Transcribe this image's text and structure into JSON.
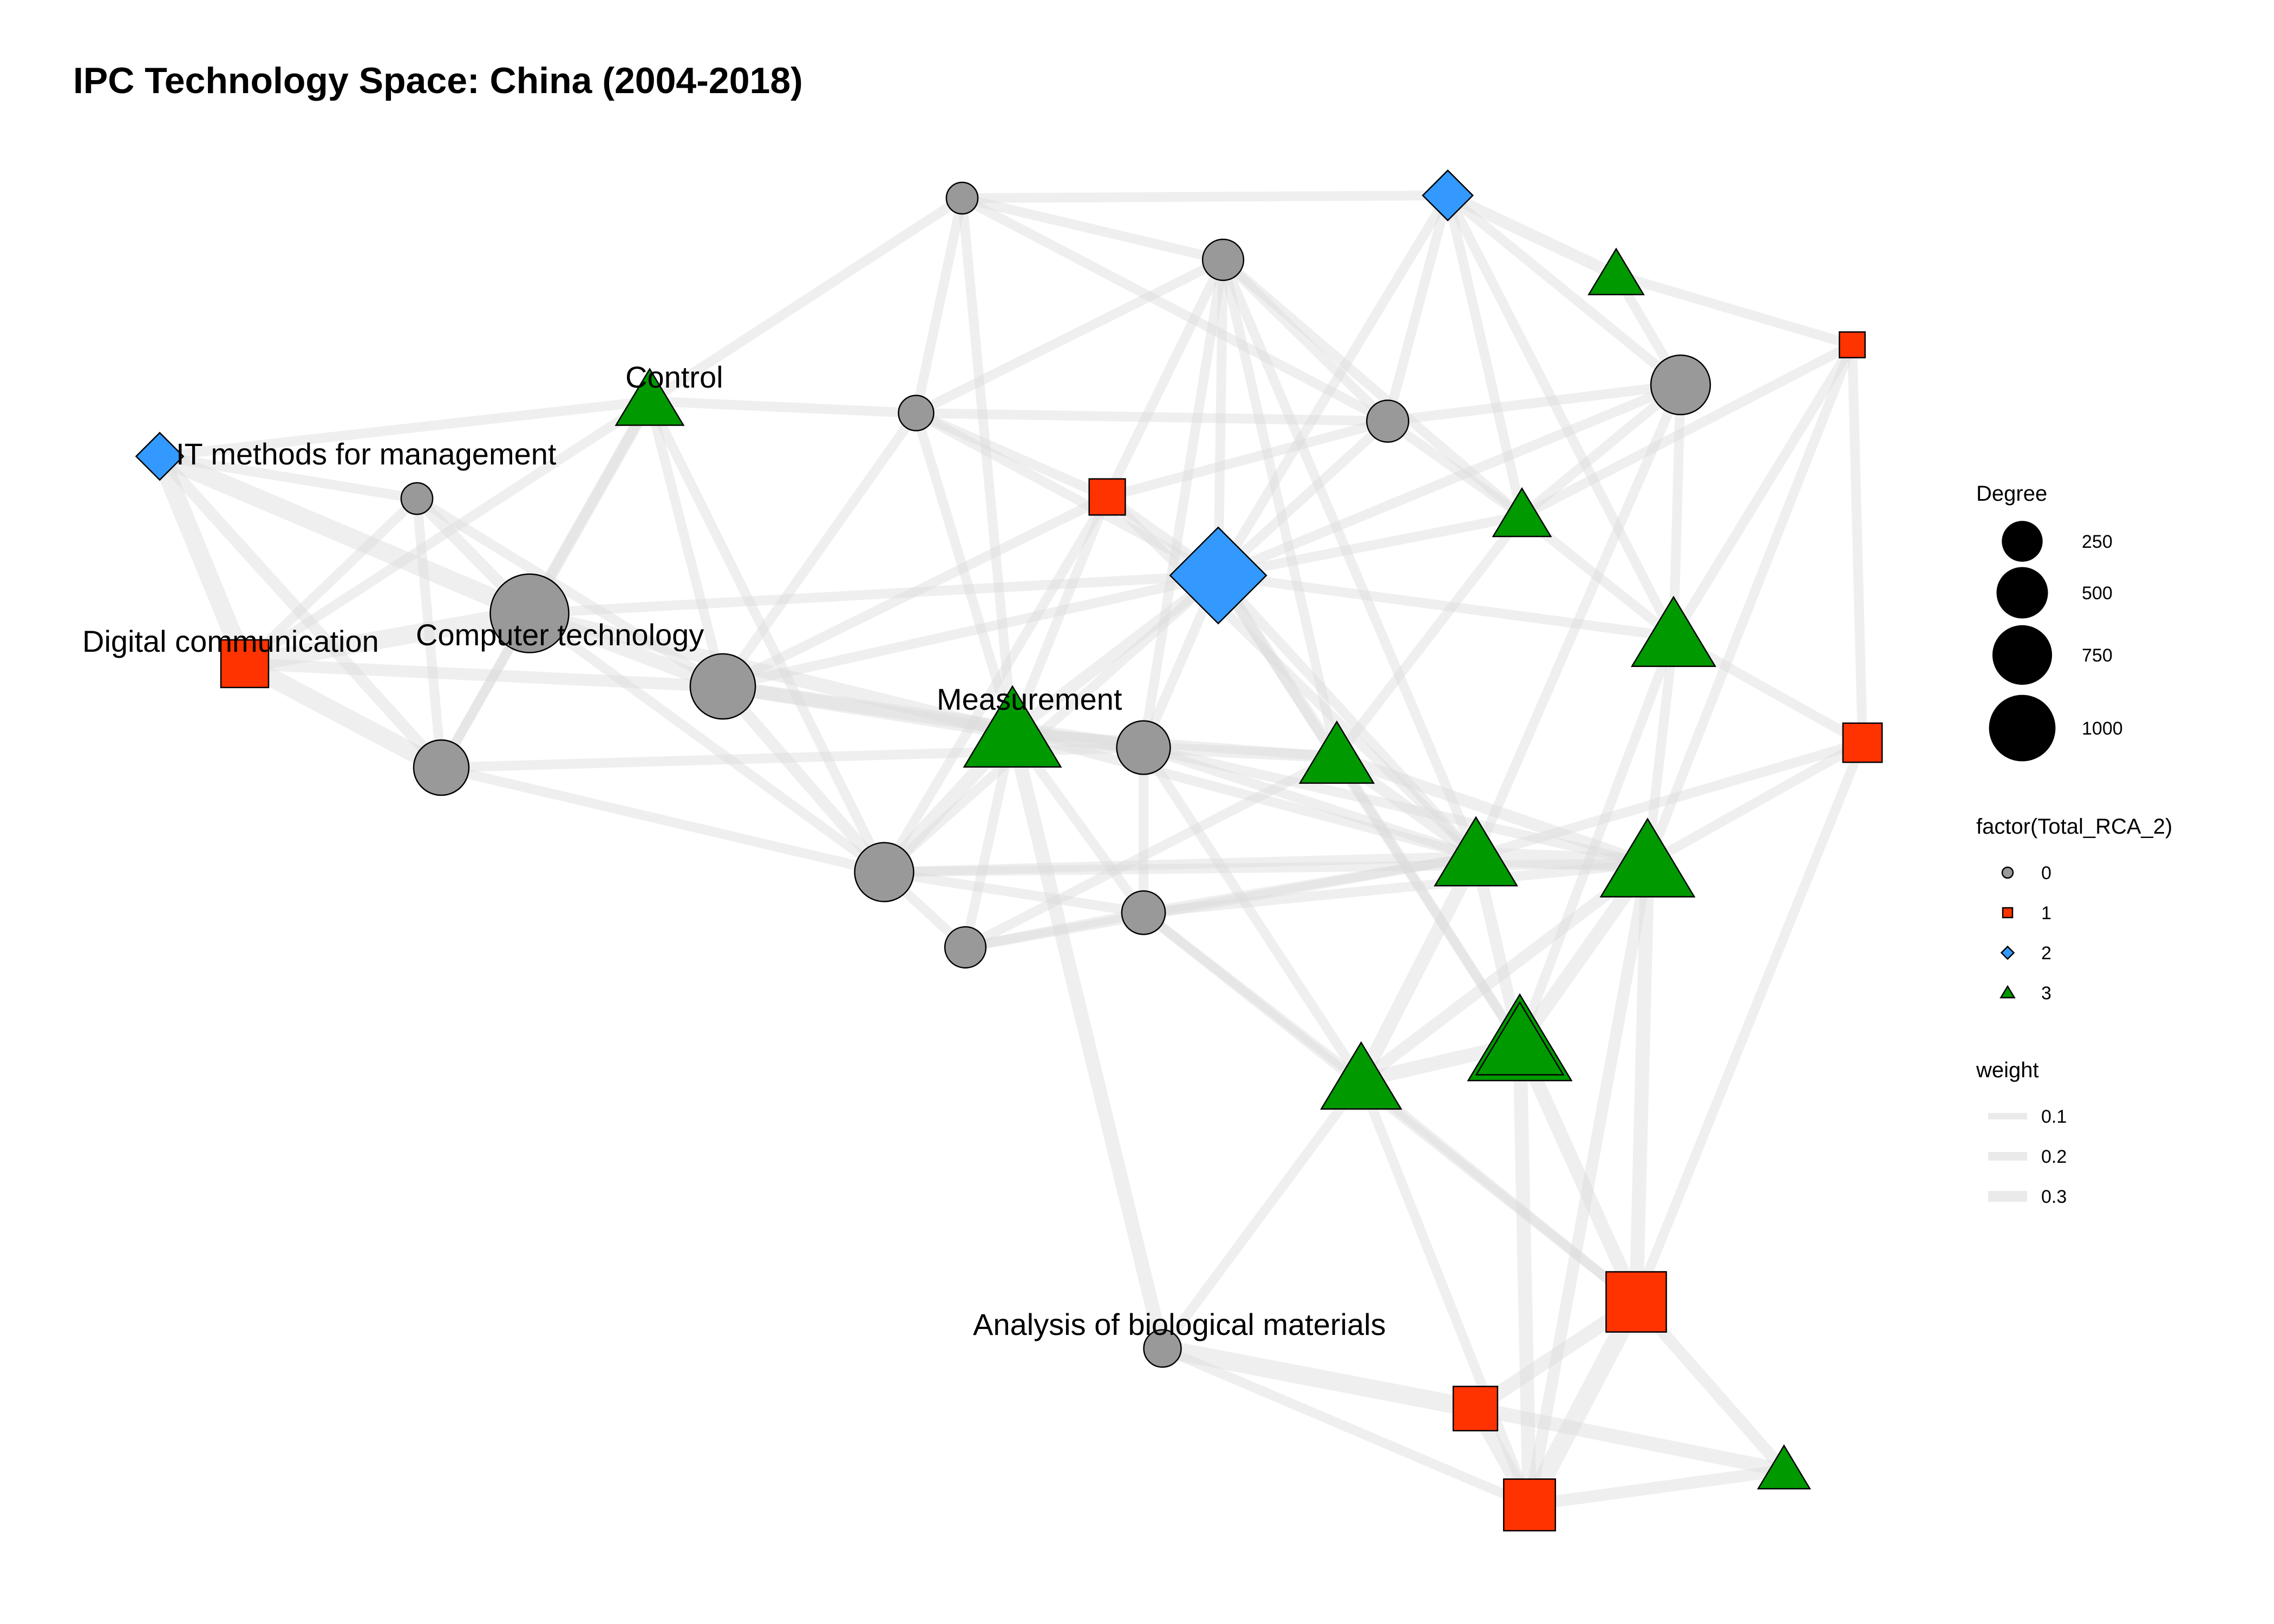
{
  "title": "IPC Technology Space: China (2004-2018)",
  "colors": {
    "rca_0": "#999999",
    "rca_1": "#FF3300",
    "rca_2": "#3399FF",
    "rca_3": "#009900",
    "edge": "#dcdcdc",
    "outline": "#000000"
  },
  "legend": {
    "degree": {
      "title": "Degree",
      "entries": [
        {
          "label": "250",
          "value": 250
        },
        {
          "label": "500",
          "value": 500
        },
        {
          "label": "750",
          "value": 750
        },
        {
          "label": "1000",
          "value": 1000
        }
      ]
    },
    "rca": {
      "title": "factor(Total_RCA_2)",
      "entries": [
        {
          "label": "0",
          "shape": "circle",
          "color": "#999999"
        },
        {
          "label": "1",
          "shape": "square",
          "color": "#FF3300"
        },
        {
          "label": "2",
          "shape": "diamond",
          "color": "#3399FF"
        },
        {
          "label": "3",
          "shape": "triangle",
          "color": "#009900"
        }
      ]
    },
    "weight": {
      "title": "weight",
      "entries": [
        {
          "label": "0.1",
          "value": 0.1
        },
        {
          "label": "0.2",
          "value": 0.2
        },
        {
          "label": "0.3",
          "value": 0.3
        }
      ]
    }
  },
  "labels": [
    {
      "node": 31,
      "text": "IT methods for management"
    },
    {
      "node": 21,
      "text": "Control"
    },
    {
      "node": 1,
      "text": "Digital communication"
    },
    {
      "node": 0,
      "text": "Computer technology"
    },
    {
      "node": 22,
      "text": "Measurement"
    },
    {
      "node": 9,
      "text": "Analysis of biological materials"
    }
  ],
  "nodes": [
    {
      "id": 0,
      "rca": 0,
      "degree": 900
    },
    {
      "id": 1,
      "rca": 1,
      "degree": 320
    },
    {
      "id": 2,
      "rca": 0,
      "degree": 60
    },
    {
      "id": 3,
      "rca": 0,
      "degree": 360
    },
    {
      "id": 4,
      "rca": 0,
      "degree": 560
    },
    {
      "id": 5,
      "rca": 0,
      "degree": 90
    },
    {
      "id": 6,
      "rca": 0,
      "degree": 60
    },
    {
      "id": 7,
      "rca": 0,
      "degree": 330
    },
    {
      "id": 8,
      "rca": 0,
      "degree": 160
    },
    {
      "id": 9,
      "rca": 0,
      "degree": 110
    },
    {
      "id": 10,
      "rca": 0,
      "degree": 440
    },
    {
      "id": 11,
      "rca": 0,
      "degree": 180
    },
    {
      "id": 12,
      "rca": 0,
      "degree": 150
    },
    {
      "id": 13,
      "rca": 0,
      "degree": 430
    },
    {
      "id": 14,
      "rca": 0,
      "degree": 150
    },
    {
      "id": 15,
      "rca": 1,
      "degree": 140
    },
    {
      "id": 16,
      "rca": 1,
      "degree": 40
    },
    {
      "id": 17,
      "rca": 1,
      "degree": 180
    },
    {
      "id": 18,
      "rca": 1,
      "degree": 600
    },
    {
      "id": 19,
      "rca": 1,
      "degree": 260
    },
    {
      "id": 20,
      "rca": 1,
      "degree": 400
    },
    {
      "id": 21,
      "rca": 3,
      "degree": 330
    },
    {
      "id": 22,
      "rca": 3,
      "degree": 850
    },
    {
      "id": 23,
      "rca": 3,
      "degree": 420
    },
    {
      "id": 24,
      "rca": 3,
      "degree": 150
    },
    {
      "id": 25,
      "rca": 3,
      "degree": 210
    },
    {
      "id": 26,
      "rca": 3,
      "degree": 560
    },
    {
      "id": 27,
      "rca": 3,
      "degree": 580
    },
    {
      "id": 28,
      "rca": 3,
      "degree": 780
    },
    {
      "id": 29,
      "rca": 3,
      "degree": 1000
    },
    {
      "id": 30,
      "rca": 3,
      "degree": 520
    },
    {
      "id": 31,
      "rca": 2,
      "degree": 150
    },
    {
      "id": 32,
      "rca": 2,
      "degree": 180
    },
    {
      "id": 33,
      "rca": 2,
      "degree": 1050
    },
    {
      "id": 34,
      "rca": 3,
      "degree": 180
    },
    {
      "id": 35,
      "rca": 3,
      "degree": 650
    }
  ],
  "edges": [
    [
      31,
      1,
      0.3
    ],
    [
      31,
      0,
      0.3
    ],
    [
      31,
      3,
      0.15
    ],
    [
      31,
      21,
      0.1
    ],
    [
      31,
      2,
      0.1
    ],
    [
      1,
      0,
      0.3
    ],
    [
      1,
      3,
      0.3
    ],
    [
      1,
      4,
      0.15
    ],
    [
      1,
      2,
      0.1
    ],
    [
      1,
      21,
      0.1
    ],
    [
      0,
      4,
      0.2
    ],
    [
      0,
      22,
      0.2
    ],
    [
      0,
      2,
      0.15
    ],
    [
      0,
      3,
      0.1
    ],
    [
      0,
      21,
      0.15
    ],
    [
      0,
      13,
      0.1
    ],
    [
      0,
      33,
      0.1
    ],
    [
      2,
      3,
      0.1
    ],
    [
      2,
      4,
      0.1
    ],
    [
      21,
      4,
      0.1
    ],
    [
      21,
      5,
      0.1
    ],
    [
      21,
      3,
      0.1
    ],
    [
      21,
      13,
      0.1
    ],
    [
      21,
      6,
      0.1
    ],
    [
      4,
      22,
      0.2
    ],
    [
      4,
      7,
      0.2
    ],
    [
      4,
      13,
      0.15
    ],
    [
      4,
      33,
      0.1
    ],
    [
      4,
      5,
      0.1
    ],
    [
      4,
      15,
      0.1
    ],
    [
      3,
      13,
      0.1
    ],
    [
      3,
      7,
      0.1
    ],
    [
      22,
      7,
      0.2
    ],
    [
      22,
      13,
      0.2
    ],
    [
      22,
      14,
      0.1
    ],
    [
      22,
      11,
      0.1
    ],
    [
      22,
      15,
      0.1
    ],
    [
      22,
      33,
      0.15
    ],
    [
      22,
      23,
      0.1
    ],
    [
      22,
      9,
      0.2
    ],
    [
      22,
      26,
      0.1
    ],
    [
      22,
      6,
      0.1
    ],
    [
      22,
      5,
      0.1
    ],
    [
      7,
      23,
      0.15
    ],
    [
      7,
      11,
      0.1
    ],
    [
      7,
      33,
      0.1
    ],
    [
      7,
      12,
      0.1
    ],
    [
      7,
      26,
      0.1
    ],
    [
      7,
      28,
      0.1
    ],
    [
      7,
      30,
      0.1
    ],
    [
      13,
      14,
      0.1
    ],
    [
      13,
      11,
      0.1
    ],
    [
      13,
      33,
      0.1
    ],
    [
      13,
      26,
      0.1
    ],
    [
      13,
      15,
      0.1
    ],
    [
      13,
      28,
      0.1
    ],
    [
      14,
      11,
      0.1
    ],
    [
      14,
      23,
      0.1
    ],
    [
      14,
      26,
      0.1
    ],
    [
      11,
      26,
      0.1
    ],
    [
      11,
      28,
      0.1
    ],
    [
      11,
      30,
      0.1
    ],
    [
      11,
      18,
      0.1
    ],
    [
      33,
      15,
      0.1
    ],
    [
      33,
      8,
      0.1
    ],
    [
      33,
      12,
      0.1
    ],
    [
      33,
      10,
      0.1
    ],
    [
      33,
      23,
      0.15
    ],
    [
      33,
      25,
      0.1
    ],
    [
      33,
      27,
      0.1
    ],
    [
      33,
      26,
      0.1
    ],
    [
      33,
      32,
      0.1
    ],
    [
      33,
      5,
      0.1
    ],
    [
      33,
      35,
      0.1
    ],
    [
      15,
      5,
      0.1
    ],
    [
      15,
      8,
      0.1
    ],
    [
      15,
      12,
      0.1
    ],
    [
      15,
      26,
      0.1
    ],
    [
      5,
      6,
      0.1
    ],
    [
      5,
      8,
      0.1
    ],
    [
      5,
      12,
      0.1
    ],
    [
      6,
      8,
      0.1
    ],
    [
      6,
      32,
      0.1
    ],
    [
      6,
      12,
      0.1
    ],
    [
      8,
      32,
      0.1
    ],
    [
      8,
      12,
      0.1
    ],
    [
      8,
      25,
      0.1
    ],
    [
      8,
      10,
      0.1
    ],
    [
      32,
      34,
      0.15
    ],
    [
      32,
      10,
      0.1
    ],
    [
      32,
      25,
      0.1
    ],
    [
      32,
      27,
      0.1
    ],
    [
      34,
      10,
      0.1
    ],
    [
      34,
      16,
      0.1
    ],
    [
      10,
      27,
      0.1
    ],
    [
      10,
      25,
      0.1
    ],
    [
      10,
      26,
      0.1
    ],
    [
      12,
      25,
      0.1
    ],
    [
      12,
      23,
      0.1
    ],
    [
      12,
      26,
      0.1
    ],
    [
      25,
      27,
      0.1
    ],
    [
      25,
      23,
      0.1
    ],
    [
      25,
      16,
      0.1
    ],
    [
      27,
      16,
      0.1
    ],
    [
      27,
      17,
      0.1
    ],
    [
      27,
      28,
      0.1
    ],
    [
      27,
      35,
      0.1
    ],
    [
      23,
      26,
      0.15
    ],
    [
      23,
      28,
      0.15
    ],
    [
      23,
      35,
      0.1
    ],
    [
      16,
      17,
      0.1
    ],
    [
      16,
      28,
      0.1
    ],
    [
      26,
      28,
      0.3
    ],
    [
      26,
      35,
      0.15
    ],
    [
      26,
      30,
      0.2
    ],
    [
      26,
      17,
      0.1
    ],
    [
      28,
      35,
      0.2
    ],
    [
      28,
      30,
      0.15
    ],
    [
      28,
      18,
      0.2
    ],
    [
      28,
      20,
      0.15
    ],
    [
      35,
      30,
      0.2
    ],
    [
      35,
      18,
      0.2
    ],
    [
      35,
      20,
      0.2
    ],
    [
      30,
      18,
      0.1
    ],
    [
      30,
      9,
      0.1
    ],
    [
      30,
      20,
      0.1
    ],
    [
      18,
      20,
      0.3
    ],
    [
      18,
      19,
      0.2
    ],
    [
      18,
      24,
      0.15
    ],
    [
      20,
      19,
      0.2
    ],
    [
      20,
      24,
      0.15
    ],
    [
      19,
      9,
      0.3
    ],
    [
      19,
      24,
      0.2
    ],
    [
      9,
      20,
      0.1
    ],
    [
      17,
      28,
      0.1
    ],
    [
      17,
      18,
      0.1
    ]
  ]
}
